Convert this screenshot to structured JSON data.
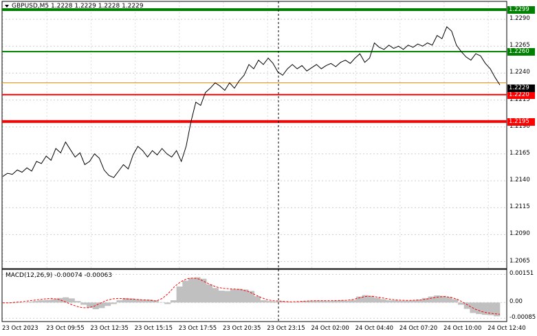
{
  "header": {
    "symbol_line": "GBPUSD,M5  1.2228 1.2229 1.2228 1.2229",
    "dropdown_icon": "triangle-down-icon"
  },
  "price_axis": {
    "ticks": [
      "1.2290",
      "1.2265",
      "1.2240",
      "1.2215",
      "1.2190",
      "1.2165",
      "1.2140",
      "1.2115",
      "1.2090",
      "1.2065"
    ],
    "range": [
      1.2059,
      1.2306
    ]
  },
  "levels": [
    {
      "label": "1.2299",
      "value": 1.2299,
      "color": "#008000"
    },
    {
      "label": "1.2260",
      "value": 1.226,
      "color": "#008000"
    },
    {
      "label": "1.2220",
      "value": 1.222,
      "color": "#ff0000"
    },
    {
      "label": "1.2195",
      "value": 1.2195,
      "color": "#ff0000"
    }
  ],
  "current_price": {
    "label": "1.2229",
    "value": 1.2229
  },
  "orange_line_value": 1.2231,
  "time_axis": [
    "23 Oct 2023",
    "23 Oct 09:55",
    "23 Oct 12:35",
    "23 Oct 15:15",
    "23 Oct 17:55",
    "23 Oct 20:35",
    "23 Oct 23:15",
    "24 Oct 02:00",
    "24 Oct 04:40",
    "24 Oct 07:20",
    "24 Oct 10:00",
    "24 Oct 12:40"
  ],
  "macd": {
    "title": "MACD(12,26,9) -0.00074 -0.00063",
    "ticks": [
      "0.00151",
      "0.00",
      "-0.00085"
    ],
    "range": [
      -0.00095,
      0.0016
    ]
  },
  "chart_data": {
    "type": "line",
    "price_series": [
      1.2144,
      1.2147,
      1.2146,
      1.215,
      1.2148,
      1.2152,
      1.2149,
      1.2158,
      1.2156,
      1.2163,
      1.2159,
      1.217,
      1.2166,
      1.2176,
      1.2169,
      1.2162,
      1.2166,
      1.2155,
      1.2158,
      1.2165,
      1.2161,
      1.215,
      1.2145,
      1.2143,
      1.2149,
      1.2155,
      1.2151,
      1.2164,
      1.2172,
      1.2168,
      1.2162,
      1.2168,
      1.2164,
      1.217,
      1.2165,
      1.2162,
      1.2168,
      1.2158,
      1.2172,
      1.2195,
      1.2213,
      1.221,
      1.2222,
      1.2226,
      1.2231,
      1.2228,
      1.2224,
      1.2231,
      1.2226,
      1.2233,
      1.2238,
      1.2248,
      1.2244,
      1.2252,
      1.2248,
      1.2254,
      1.2249,
      1.2241,
      1.2238,
      1.2244,
      1.2248,
      1.2244,
      1.2247,
      1.2242,
      1.2245,
      1.2248,
      1.2244,
      1.2247,
      1.2249,
      1.2246,
      1.225,
      1.2252,
      1.2249,
      1.2254,
      1.2258,
      1.225,
      1.2254,
      1.2268,
      1.2264,
      1.2262,
      1.2266,
      1.2263,
      1.2265,
      1.2262,
      1.2266,
      1.2264,
      1.2267,
      1.2265,
      1.2268,
      1.2266,
      1.2275,
      1.2272,
      1.2283,
      1.2279,
      1.2266,
      1.226,
      1.2255,
      1.2252,
      1.2258,
      1.2256,
      1.2249,
      1.2244,
      1.2236,
      1.2229
    ],
    "macd_histogram": [
      -2e-05,
      -3e-05,
      -2e-05,
      1e-05,
      4e-05,
      8e-05,
      0.00012,
      0.00014,
      0.00018,
      0.00024,
      0.00028,
      0.00022,
      8e-05,
      -0.00012,
      -0.00028,
      -0.00036,
      -0.0003,
      -0.00018,
      -8e-05,
      0.00012,
      0.00024,
      0.00022,
      0.00018,
      0.00016,
      0.00016,
      0.00012,
      2e-05,
      -8e-05,
      0.00012,
      0.00086,
      0.00118,
      0.00132,
      0.00136,
      0.00128,
      0.00098,
      0.00078,
      0.00064,
      0.00062,
      0.00072,
      0.00074,
      0.0007,
      0.00062,
      0.00034,
      0.00012,
      8e-05,
      6e-05,
      8e-05,
      4e-05,
      2e-05,
      4e-05,
      8e-05,
      0.0001,
      0.0001,
      0.0001,
      8e-05,
      0.0001,
      0.00012,
      0.0001,
      0.00014,
      0.00032,
      0.0004,
      0.00036,
      0.00026,
      0.00018,
      0.00012,
      0.00012,
      0.0001,
      0.0001,
      0.00012,
      0.00016,
      0.00024,
      0.00032,
      0.00038,
      0.00036,
      0.0003,
      0.00018,
      -0.00012,
      -0.00034,
      -0.00056,
      -0.00062,
      -0.00066,
      -0.00068,
      -0.00074
    ],
    "macd_signal": [
      -2e-05,
      -2e-05,
      1e-05,
      4e-05,
      8e-05,
      0.00012,
      0.00016,
      0.0002,
      0.00022,
      0.00018,
      6e-05,
      -8e-05,
      -0.0002,
      -0.00028,
      -0.00028,
      -0.00018,
      -2e-05,
      0.00012,
      0.0002,
      0.00022,
      0.0002,
      0.00018,
      0.00016,
      0.00014,
      0.00012,
      8e-05,
      0.00022,
      0.0005,
      0.00086,
      0.00112,
      0.00128,
      0.00132,
      0.00126,
      0.0011,
      0.00094,
      0.00082,
      0.00076,
      0.00074,
      0.00072,
      0.00068,
      0.0006,
      0.00044,
      0.00028,
      0.00016,
      0.0001,
      8e-05,
      6e-05,
      4e-05,
      5e-05,
      7e-05,
      9e-05,
      0.0001,
      0.0001,
      0.0001,
      0.0001,
      0.00011,
      0.00012,
      0.00016,
      0.00024,
      0.00032,
      0.00034,
      0.0003,
      0.00024,
      0.00018,
      0.00014,
      0.00012,
      0.00011,
      0.00012,
      0.00014,
      0.00018,
      0.00024,
      0.0003,
      0.00032,
      0.00028,
      0.00018,
      2e-05,
      -0.00018,
      -0.00036,
      -0.00048,
      -0.00056,
      -0.0006,
      -0.00063
    ]
  }
}
